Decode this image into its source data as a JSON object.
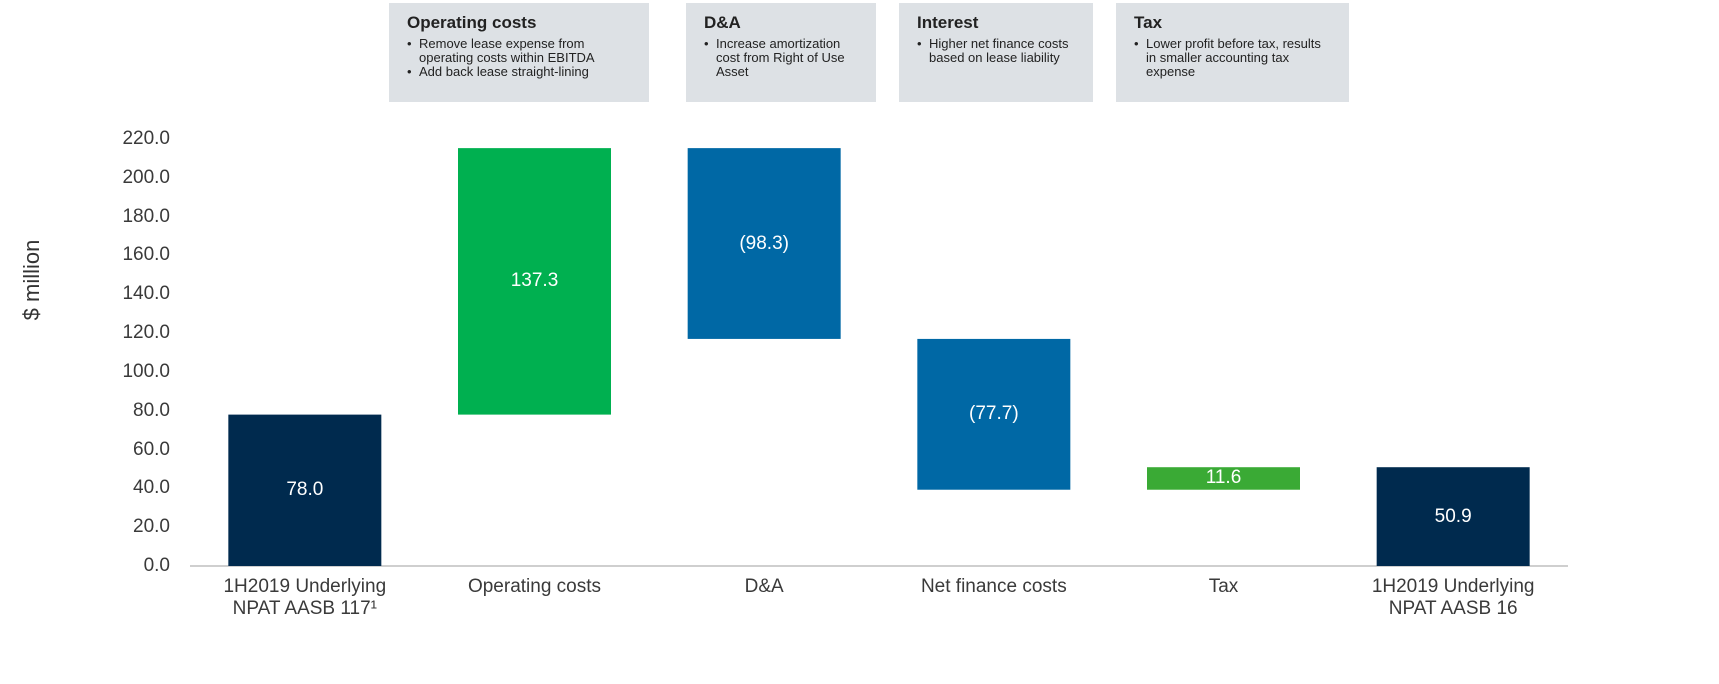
{
  "chart_data": {
    "type": "waterfall",
    "y_label": "$ million",
    "categories": [
      "1H2019 Underlying NPAT AASB 117¹",
      "Operating costs",
      "D&A",
      "Net finance costs",
      "Tax",
      "1H2019 Underlying NPAT AASB 16"
    ],
    "values": [
      78.0,
      137.3,
      -98.3,
      -77.7,
      11.6,
      50.9
    ],
    "value_labels": [
      "78.0",
      "137.3",
      "(98.3)",
      "(77.7)",
      "11.6",
      "50.9"
    ],
    "measures": [
      "total",
      "relative",
      "relative",
      "relative",
      "relative",
      "total"
    ],
    "colors": [
      "#002a4e",
      "#00b050",
      "#0068a5",
      "#0068a5",
      "#3aaa35",
      "#002a4e"
    ],
    "ylim": [
      0,
      220
    ],
    "yticks": [
      {
        "value": 0,
        "label": "0.0"
      },
      {
        "value": 20,
        "label": "20.0"
      },
      {
        "value": 40,
        "label": "40.0"
      },
      {
        "value": 60,
        "label": "60.0"
      },
      {
        "value": 80,
        "label": "80.0"
      },
      {
        "value": 100,
        "label": "100.0"
      },
      {
        "value": 120,
        "label": "120.0"
      },
      {
        "value": 140,
        "label": "140.0"
      },
      {
        "value": 160,
        "label": "160.0"
      },
      {
        "value": 180,
        "label": "180.0"
      },
      {
        "value": 200,
        "label": "200.0"
      },
      {
        "value": 220,
        "label": "220.0"
      }
    ],
    "annotations": [
      {
        "title": "Operating costs",
        "bullets": [
          "Remove lease expense from operating costs within EBITDA",
          "Add back lease straight-lining"
        ]
      },
      {
        "title": "D&A",
        "bullets": [
          "Increase amortization cost from Right of Use Asset"
        ]
      },
      {
        "title": "Interest",
        "bullets": [
          "Higher net finance costs based on lease liability"
        ]
      },
      {
        "title": "Tax",
        "bullets": [
          "Lower profit before tax, results in smaller accounting tax expense"
        ]
      }
    ]
  }
}
